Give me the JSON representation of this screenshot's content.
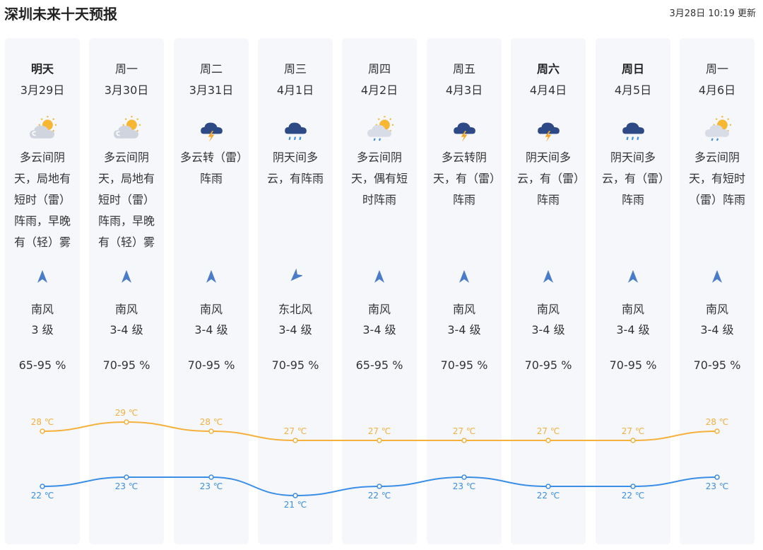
{
  "header": {
    "title": "深圳未来十天预报",
    "updated": "3月28日 10:19 更新"
  },
  "colors": {
    "high": "#f5b13b",
    "low": "#3a8ee6",
    "column_bg": "#f5f7fb",
    "arrow": "#4a7cc9"
  },
  "days": [
    {
      "day": "明天",
      "date": "3月29日",
      "bold": true,
      "icon": "partly-cloudy-sun-icon",
      "desc": "多云间阴天，局地有短时（雷）阵雨，早晚有（轻）雾",
      "wind_dir": "南风",
      "wind_arrow": "south-wind-arrow-icon",
      "wind_level": "3 级",
      "humidity": "65-95 %",
      "high": 28,
      "low": 22,
      "high_label": "28 ℃",
      "low_label": "22 ℃"
    },
    {
      "day": "周一",
      "date": "3月30日",
      "bold": false,
      "icon": "partly-cloudy-sun-icon",
      "desc": "多云间阴天，局地有短时（雷）阵雨，早晚有（轻）雾",
      "wind_dir": "南风",
      "wind_arrow": "south-wind-arrow-icon",
      "wind_level": "3-4 级",
      "humidity": "70-95 %",
      "high": 29,
      "low": 23,
      "high_label": "29 ℃",
      "low_label": "23 ℃"
    },
    {
      "day": "周二",
      "date": "3月31日",
      "bold": false,
      "icon": "thunderstorm-icon",
      "desc": "多云转（雷）阵雨",
      "wind_dir": "南风",
      "wind_arrow": "south-wind-arrow-icon",
      "wind_level": "3-4 级",
      "humidity": "70-95 %",
      "high": 28,
      "low": 23,
      "high_label": "28 ℃",
      "low_label": "23 ℃"
    },
    {
      "day": "周三",
      "date": "4月1日",
      "bold": false,
      "icon": "rain-icon",
      "desc": "阴天间多云，有阵雨",
      "wind_dir": "东北风",
      "wind_arrow": "northeast-wind-arrow-icon",
      "wind_level": "3-4 级",
      "humidity": "70-95 %",
      "high": 27,
      "low": 21,
      "high_label": "27 ℃",
      "low_label": "21 ℃"
    },
    {
      "day": "周四",
      "date": "4月2日",
      "bold": false,
      "icon": "sun-rain-icon",
      "desc": "多云间阴天，偶有短时阵雨",
      "wind_dir": "南风",
      "wind_arrow": "south-wind-arrow-icon",
      "wind_level": "3-4 级",
      "humidity": "65-95 %",
      "high": 27,
      "low": 22,
      "high_label": "27 ℃",
      "low_label": "22 ℃"
    },
    {
      "day": "周五",
      "date": "4月3日",
      "bold": false,
      "icon": "thunderstorm-icon",
      "desc": "多云转阴天，有（雷）阵雨",
      "wind_dir": "南风",
      "wind_arrow": "south-wind-arrow-icon",
      "wind_level": "3-4 级",
      "humidity": "70-95 %",
      "high": 27,
      "low": 23,
      "high_label": "27 ℃",
      "low_label": "23 ℃"
    },
    {
      "day": "周六",
      "date": "4月4日",
      "bold": true,
      "icon": "thunderstorm-icon",
      "desc": "阴天间多云，有（雷）阵雨",
      "wind_dir": "南风",
      "wind_arrow": "south-wind-arrow-icon",
      "wind_level": "3-4 级",
      "humidity": "70-95 %",
      "high": 27,
      "low": 22,
      "high_label": "27 ℃",
      "low_label": "22 ℃"
    },
    {
      "day": "周日",
      "date": "4月5日",
      "bold": true,
      "icon": "rain-icon",
      "desc": "阴天间多云，有（雷）阵雨",
      "wind_dir": "南风",
      "wind_arrow": "south-wind-arrow-icon",
      "wind_level": "3-4 级",
      "humidity": "70-95 %",
      "high": 27,
      "low": 22,
      "high_label": "27 ℃",
      "low_label": "22 ℃"
    },
    {
      "day": "周一",
      "date": "4月6日",
      "bold": false,
      "icon": "sun-rain-icon",
      "desc": "多云间阴天，有短时（雷）阵雨",
      "wind_dir": "南风",
      "wind_arrow": "south-wind-arrow-icon",
      "wind_level": "3-4 级",
      "humidity": "70-95 %",
      "high": 28,
      "low": 23,
      "high_label": "28 ℃",
      "low_label": "23 ℃"
    }
  ]
}
